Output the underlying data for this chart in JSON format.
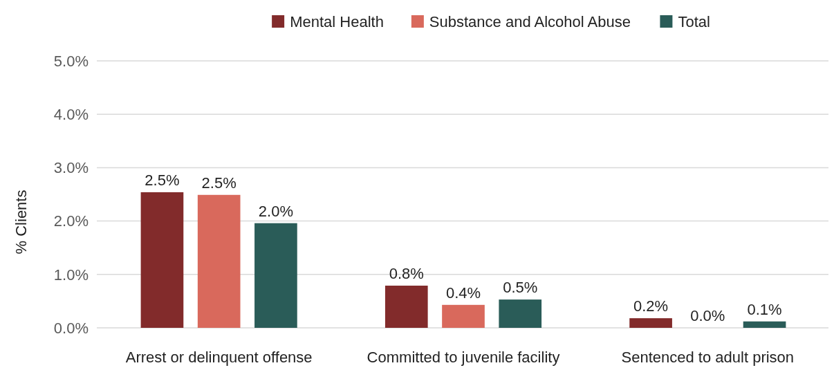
{
  "chart_data": {
    "type": "bar",
    "ylabel": "% Clients",
    "categories": [
      "Arrest or delinquent offense",
      "Committed to juvenile facility",
      "Sentenced to adult prison"
    ],
    "series": [
      {
        "name": "Mental Health",
        "color": "#822b2b",
        "values": [
          2.54,
          0.79,
          0.18
        ],
        "value_labels": [
          "2.5%",
          "0.8%",
          "0.2%"
        ]
      },
      {
        "name": "Substance and Alcohol Abuse",
        "color": "#d9695c",
        "values": [
          2.49,
          0.43,
          0.0
        ],
        "value_labels": [
          "2.5%",
          "0.4%",
          "0.0%"
        ]
      },
      {
        "name": "Total",
        "color": "#2a5c58",
        "values": [
          1.96,
          0.53,
          0.12
        ],
        "value_labels": [
          "2.0%",
          "0.5%",
          "0.1%"
        ]
      }
    ],
    "ylim": [
      0,
      5
    ],
    "yticks": [
      {
        "value": 0,
        "label": "0.0%"
      },
      {
        "value": 1,
        "label": "1.0%"
      },
      {
        "value": 2,
        "label": "2.0%"
      },
      {
        "value": 3,
        "label": "3.0%"
      },
      {
        "value": 4,
        "label": "4.0%"
      },
      {
        "value": 5,
        "label": "5.0%"
      }
    ],
    "grid": "y",
    "legend": "top"
  }
}
